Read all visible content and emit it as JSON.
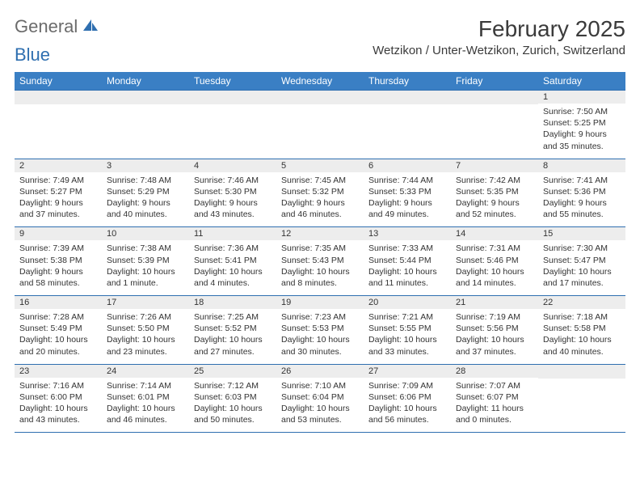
{
  "brand": {
    "part1": "General",
    "part2": "Blue"
  },
  "title": "February 2025",
  "location": "Wetzikon / Unter-Wetzikon, Zurich, Switzerland",
  "colors": {
    "header_bg": "#3a7fc4",
    "header_text": "#ffffff",
    "rule": "#2f6fb0",
    "daynum_bg": "#ededed",
    "text": "#333333",
    "logo_gray": "#6b6b6b",
    "logo_blue": "#2f6fb0"
  },
  "typography": {
    "month_title_size": 28,
    "location_size": 15,
    "day_header_size": 12,
    "cell_text_size": 10.5,
    "font_family": "Arial"
  },
  "day_headers": [
    "Sunday",
    "Monday",
    "Tuesday",
    "Wednesday",
    "Thursday",
    "Friday",
    "Saturday"
  ],
  "weeks": [
    [
      null,
      null,
      null,
      null,
      null,
      null,
      {
        "n": "1",
        "sr": "Sunrise: 7:50 AM",
        "ss": "Sunset: 5:25 PM",
        "d1": "Daylight: 9 hours",
        "d2": "and 35 minutes."
      }
    ],
    [
      {
        "n": "2",
        "sr": "Sunrise: 7:49 AM",
        "ss": "Sunset: 5:27 PM",
        "d1": "Daylight: 9 hours",
        "d2": "and 37 minutes."
      },
      {
        "n": "3",
        "sr": "Sunrise: 7:48 AM",
        "ss": "Sunset: 5:29 PM",
        "d1": "Daylight: 9 hours",
        "d2": "and 40 minutes."
      },
      {
        "n": "4",
        "sr": "Sunrise: 7:46 AM",
        "ss": "Sunset: 5:30 PM",
        "d1": "Daylight: 9 hours",
        "d2": "and 43 minutes."
      },
      {
        "n": "5",
        "sr": "Sunrise: 7:45 AM",
        "ss": "Sunset: 5:32 PM",
        "d1": "Daylight: 9 hours",
        "d2": "and 46 minutes."
      },
      {
        "n": "6",
        "sr": "Sunrise: 7:44 AM",
        "ss": "Sunset: 5:33 PM",
        "d1": "Daylight: 9 hours",
        "d2": "and 49 minutes."
      },
      {
        "n": "7",
        "sr": "Sunrise: 7:42 AM",
        "ss": "Sunset: 5:35 PM",
        "d1": "Daylight: 9 hours",
        "d2": "and 52 minutes."
      },
      {
        "n": "8",
        "sr": "Sunrise: 7:41 AM",
        "ss": "Sunset: 5:36 PM",
        "d1": "Daylight: 9 hours",
        "d2": "and 55 minutes."
      }
    ],
    [
      {
        "n": "9",
        "sr": "Sunrise: 7:39 AM",
        "ss": "Sunset: 5:38 PM",
        "d1": "Daylight: 9 hours",
        "d2": "and 58 minutes."
      },
      {
        "n": "10",
        "sr": "Sunrise: 7:38 AM",
        "ss": "Sunset: 5:39 PM",
        "d1": "Daylight: 10 hours",
        "d2": "and 1 minute."
      },
      {
        "n": "11",
        "sr": "Sunrise: 7:36 AM",
        "ss": "Sunset: 5:41 PM",
        "d1": "Daylight: 10 hours",
        "d2": "and 4 minutes."
      },
      {
        "n": "12",
        "sr": "Sunrise: 7:35 AM",
        "ss": "Sunset: 5:43 PM",
        "d1": "Daylight: 10 hours",
        "d2": "and 8 minutes."
      },
      {
        "n": "13",
        "sr": "Sunrise: 7:33 AM",
        "ss": "Sunset: 5:44 PM",
        "d1": "Daylight: 10 hours",
        "d2": "and 11 minutes."
      },
      {
        "n": "14",
        "sr": "Sunrise: 7:31 AM",
        "ss": "Sunset: 5:46 PM",
        "d1": "Daylight: 10 hours",
        "d2": "and 14 minutes."
      },
      {
        "n": "15",
        "sr": "Sunrise: 7:30 AM",
        "ss": "Sunset: 5:47 PM",
        "d1": "Daylight: 10 hours",
        "d2": "and 17 minutes."
      }
    ],
    [
      {
        "n": "16",
        "sr": "Sunrise: 7:28 AM",
        "ss": "Sunset: 5:49 PM",
        "d1": "Daylight: 10 hours",
        "d2": "and 20 minutes."
      },
      {
        "n": "17",
        "sr": "Sunrise: 7:26 AM",
        "ss": "Sunset: 5:50 PM",
        "d1": "Daylight: 10 hours",
        "d2": "and 23 minutes."
      },
      {
        "n": "18",
        "sr": "Sunrise: 7:25 AM",
        "ss": "Sunset: 5:52 PM",
        "d1": "Daylight: 10 hours",
        "d2": "and 27 minutes."
      },
      {
        "n": "19",
        "sr": "Sunrise: 7:23 AM",
        "ss": "Sunset: 5:53 PM",
        "d1": "Daylight: 10 hours",
        "d2": "and 30 minutes."
      },
      {
        "n": "20",
        "sr": "Sunrise: 7:21 AM",
        "ss": "Sunset: 5:55 PM",
        "d1": "Daylight: 10 hours",
        "d2": "and 33 minutes."
      },
      {
        "n": "21",
        "sr": "Sunrise: 7:19 AM",
        "ss": "Sunset: 5:56 PM",
        "d1": "Daylight: 10 hours",
        "d2": "and 37 minutes."
      },
      {
        "n": "22",
        "sr": "Sunrise: 7:18 AM",
        "ss": "Sunset: 5:58 PM",
        "d1": "Daylight: 10 hours",
        "d2": "and 40 minutes."
      }
    ],
    [
      {
        "n": "23",
        "sr": "Sunrise: 7:16 AM",
        "ss": "Sunset: 6:00 PM",
        "d1": "Daylight: 10 hours",
        "d2": "and 43 minutes."
      },
      {
        "n": "24",
        "sr": "Sunrise: 7:14 AM",
        "ss": "Sunset: 6:01 PM",
        "d1": "Daylight: 10 hours",
        "d2": "and 46 minutes."
      },
      {
        "n": "25",
        "sr": "Sunrise: 7:12 AM",
        "ss": "Sunset: 6:03 PM",
        "d1": "Daylight: 10 hours",
        "d2": "and 50 minutes."
      },
      {
        "n": "26",
        "sr": "Sunrise: 7:10 AM",
        "ss": "Sunset: 6:04 PM",
        "d1": "Daylight: 10 hours",
        "d2": "and 53 minutes."
      },
      {
        "n": "27",
        "sr": "Sunrise: 7:09 AM",
        "ss": "Sunset: 6:06 PM",
        "d1": "Daylight: 10 hours",
        "d2": "and 56 minutes."
      },
      {
        "n": "28",
        "sr": "Sunrise: 7:07 AM",
        "ss": "Sunset: 6:07 PM",
        "d1": "Daylight: 11 hours",
        "d2": "and 0 minutes."
      },
      null
    ]
  ]
}
